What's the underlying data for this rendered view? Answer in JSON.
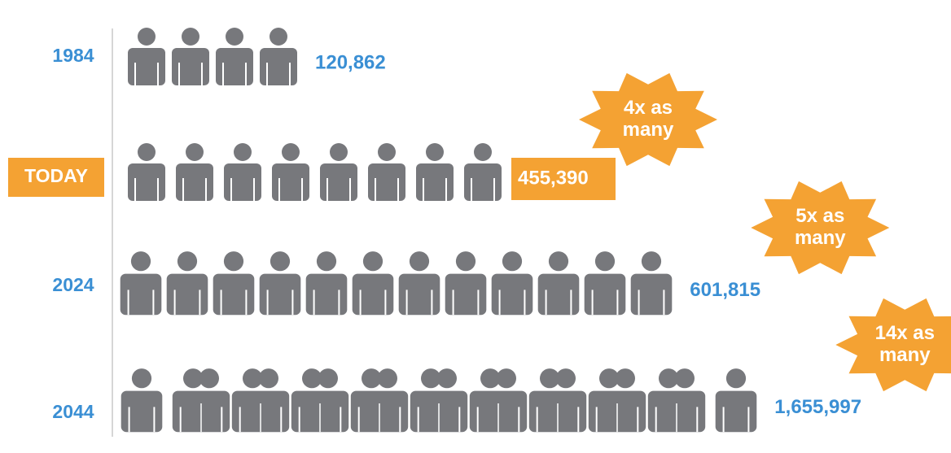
{
  "chart_data": {
    "type": "pictograph",
    "categories": [
      "1984",
      "TODAY",
      "2024",
      "2044"
    ],
    "values": [
      120862,
      455390,
      601815,
      1655997
    ],
    "value_labels": [
      "120,862",
      "455,390",
      "601,815",
      "1,655,997"
    ],
    "annotations": [
      null,
      [
        "4x as",
        "many"
      ],
      [
        "5x as",
        "many"
      ],
      [
        "14x as",
        "many"
      ]
    ],
    "color": "#77787c",
    "label_color": "#3a8fd4",
    "highlight": 1,
    "highlight_color": "#f4a233"
  }
}
